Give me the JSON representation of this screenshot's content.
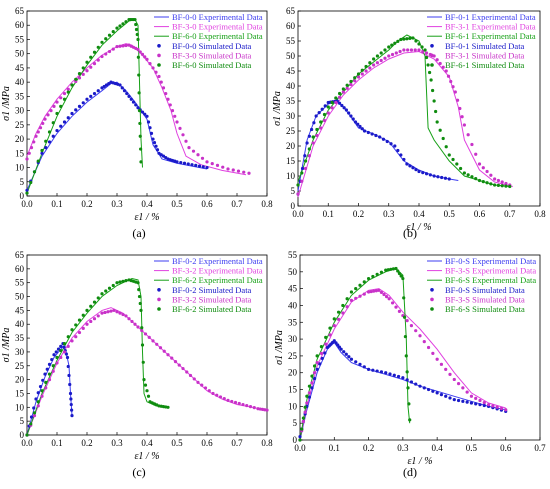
{
  "chart_data": [
    {
      "type": "line",
      "panel_label": "(a)",
      "xlabel": "ε1 / %",
      "ylabel": "σ1 /MPa",
      "xlim": [
        0,
        0.8
      ],
      "ylim": [
        0,
        65
      ],
      "xticks": [
        "0.0",
        "0.1",
        "0.2",
        "0.3",
        "0.4",
        "0.5",
        "0.6",
        "0.7",
        "0.8"
      ],
      "yticks": [
        "0",
        "5",
        "10",
        "15",
        "20",
        "25",
        "30",
        "35",
        "40",
        "45",
        "50",
        "55",
        "60",
        "65"
      ],
      "legend_position": "top-right",
      "series": [
        {
          "name": "BF-0-0 Experimental Data",
          "color": "#3c3cf0",
          "style": "solid",
          "x": [
            0,
            0.05,
            0.1,
            0.15,
            0.2,
            0.25,
            0.28,
            0.3,
            0.33,
            0.36,
            0.38,
            0.4,
            0.42,
            0.45,
            0.5,
            0.55,
            0.6
          ],
          "y": [
            2,
            14,
            22,
            28,
            33,
            37,
            39.5,
            40,
            37,
            33,
            30,
            27,
            18,
            13,
            11.5,
            10.5,
            9.5
          ]
        },
        {
          "name": "BF-3-0 Experimental Data",
          "color": "#e040e0",
          "style": "solid",
          "x": [
            0,
            0.03,
            0.06,
            0.1,
            0.15,
            0.2,
            0.25,
            0.3,
            0.33,
            0.35,
            0.38,
            0.42,
            0.45,
            0.48,
            0.5,
            0.53,
            0.58,
            0.65,
            0.73
          ],
          "y": [
            14,
            22,
            28,
            34,
            40,
            45,
            49.5,
            52.5,
            53.5,
            53,
            50,
            45,
            38,
            30,
            22,
            14,
            11,
            9,
            7.5
          ]
        },
        {
          "name": "BF-6-0 Experimental Data",
          "color": "#16a016",
          "style": "solid",
          "x": [
            0,
            0.05,
            0.1,
            0.15,
            0.2,
            0.25,
            0.3,
            0.34,
            0.36,
            0.37,
            0.375,
            0.38,
            0.385
          ],
          "y": [
            1,
            15,
            28,
            38,
            46,
            53,
            58,
            61.5,
            62,
            60,
            40,
            20,
            10
          ]
        },
        {
          "name": "BF-0-0 Simulated Data",
          "color": "#1a1ac8",
          "style": "dotted",
          "x": [
            0,
            0.05,
            0.1,
            0.15,
            0.2,
            0.25,
            0.28,
            0.31,
            0.34,
            0.37,
            0.4,
            0.42,
            0.44,
            0.47,
            0.5,
            0.55,
            0.6
          ],
          "y": [
            2,
            15,
            23,
            29,
            34,
            38,
            40,
            39,
            35,
            31,
            28,
            20,
            15,
            13,
            12,
            11,
            10
          ]
        },
        {
          "name": "BF-3-0 Simulated Data",
          "color": "#c832c8",
          "style": "dotted",
          "x": [
            0,
            0.03,
            0.06,
            0.1,
            0.15,
            0.2,
            0.25,
            0.3,
            0.34,
            0.37,
            0.4,
            0.44,
            0.47,
            0.5,
            0.54,
            0.6,
            0.67,
            0.74
          ],
          "y": [
            13,
            21,
            27,
            33,
            39,
            44,
            49,
            52.5,
            53,
            51.5,
            48,
            42,
            34,
            26,
            17,
            12,
            9.5,
            8
          ]
        },
        {
          "name": "BF-6-0 Simulated Data",
          "color": "#0f8c0f",
          "style": "dotted",
          "x": [
            0,
            0.05,
            0.1,
            0.15,
            0.2,
            0.25,
            0.3,
            0.34,
            0.36,
            0.37,
            0.375,
            0.38
          ],
          "y": [
            1,
            16,
            29,
            39,
            47,
            54,
            59,
            62,
            62,
            55,
            30,
            12
          ]
        }
      ]
    },
    {
      "type": "line",
      "panel_label": "(b)",
      "xlabel": "ε1 / %",
      "ylabel": "σ1 /MPa",
      "xlim": [
        0,
        0.8
      ],
      "ylim": [
        0,
        65
      ],
      "xticks": [
        "0.0",
        "0.1",
        "0.2",
        "0.3",
        "0.4",
        "0.5",
        "0.6",
        "0.7",
        "0.8"
      ],
      "yticks": [
        "0",
        "5",
        "10",
        "15",
        "20",
        "25",
        "30",
        "35",
        "40",
        "45",
        "50",
        "55",
        "60",
        "65"
      ],
      "legend_position": "top-right",
      "series": [
        {
          "name": "BF-0-1 Experimental Data",
          "color": "#3c3cf0",
          "style": "solid",
          "x": [
            0,
            0.03,
            0.06,
            0.1,
            0.13,
            0.15,
            0.18,
            0.2,
            0.25,
            0.3,
            0.35,
            0.4,
            0.45,
            0.5,
            0.53
          ],
          "y": [
            5,
            22,
            30,
            34,
            35,
            33,
            29,
            26,
            24,
            21.5,
            15,
            12,
            10,
            9,
            8.5
          ]
        },
        {
          "name": "BF-3-1 Experimental Data",
          "color": "#e040e0",
          "style": "solid",
          "x": [
            0,
            0.05,
            0.1,
            0.15,
            0.2,
            0.25,
            0.3,
            0.35,
            0.4,
            0.45,
            0.5,
            0.53,
            0.55,
            0.6,
            0.65,
            0.71
          ],
          "y": [
            3,
            20,
            30,
            37,
            42,
            46,
            49,
            51,
            51.5,
            49,
            43,
            33,
            22,
            12,
            8,
            6.5
          ]
        },
        {
          "name": "BF-6-1 Experimental Data",
          "color": "#16a016",
          "style": "solid",
          "x": [
            0,
            0.05,
            0.1,
            0.15,
            0.2,
            0.25,
            0.3,
            0.33,
            0.36,
            0.4,
            0.42,
            0.43,
            0.45,
            0.5,
            0.55,
            0.6,
            0.65,
            0.7
          ],
          "y": [
            8,
            22,
            32,
            38,
            44,
            48,
            52,
            55,
            57,
            55,
            50,
            26,
            22,
            15,
            10,
            8.5,
            7,
            6.5
          ]
        },
        {
          "name": "BF-0-1 Simulated Data",
          "color": "#1a1ac8",
          "style": "dotted",
          "x": [
            0,
            0.03,
            0.06,
            0.1,
            0.13,
            0.16,
            0.19,
            0.22,
            0.27,
            0.32,
            0.36,
            0.4,
            0.45,
            0.5
          ],
          "y": [
            4,
            21,
            30,
            34.5,
            35,
            32,
            28,
            25,
            23,
            20,
            14,
            11.5,
            10,
            9
          ]
        },
        {
          "name": "BF-3-1 Simulated Data",
          "color": "#c832c8",
          "style": "dotted",
          "x": [
            0,
            0.05,
            0.1,
            0.15,
            0.2,
            0.25,
            0.3,
            0.35,
            0.4,
            0.45,
            0.49,
            0.52,
            0.55,
            0.6,
            0.65,
            0.7
          ],
          "y": [
            4,
            21,
            31,
            38,
            43,
            47,
            50,
            52,
            52,
            50,
            45,
            38,
            27,
            14,
            9,
            7
          ]
        },
        {
          "name": "BF-6-1 Simulated Data",
          "color": "#0f8c0f",
          "style": "dotted",
          "x": [
            0,
            0.05,
            0.1,
            0.15,
            0.2,
            0.25,
            0.3,
            0.34,
            0.38,
            0.42,
            0.44,
            0.46,
            0.5,
            0.55,
            0.6,
            0.65,
            0.7
          ],
          "y": [
            7,
            23,
            33,
            39,
            44,
            49,
            53,
            55.5,
            56,
            52,
            42,
            28,
            17,
            11,
            8.5,
            7,
            6.5
          ]
        }
      ]
    },
    {
      "type": "line",
      "panel_label": "(c)",
      "xlabel": "ε1 / %",
      "ylabel": "σ1 /MPa",
      "xlim": [
        0,
        0.8
      ],
      "ylim": [
        0,
        65
      ],
      "xticks": [
        "0.0",
        "0.1",
        "0.2",
        "0.3",
        "0.4",
        "0.5",
        "0.6",
        "0.7",
        "0.8"
      ],
      "yticks": [
        "0",
        "5",
        "10",
        "15",
        "20",
        "25",
        "30",
        "35",
        "40",
        "45",
        "50",
        "55",
        "60",
        "65"
      ],
      "legend_position": "top-right",
      "series": [
        {
          "name": "BF-0-2 Experimental Data",
          "color": "#3c3cf0",
          "style": "solid",
          "x": [
            0,
            0.03,
            0.06,
            0.09,
            0.12,
            0.13,
            0.14,
            0.145,
            0.15
          ],
          "y": [
            0,
            12,
            21,
            28,
            32,
            30,
            25,
            15,
            7
          ]
        },
        {
          "name": "BF-3-2 Experimental Data",
          "color": "#e040e0",
          "style": "solid",
          "x": [
            0,
            0.05,
            0.1,
            0.15,
            0.2,
            0.25,
            0.28,
            0.32,
            0.36,
            0.4,
            0.45,
            0.5,
            0.55,
            0.6,
            0.65,
            0.7,
            0.75,
            0.8
          ],
          "y": [
            0,
            14,
            26,
            35,
            41,
            45,
            46,
            44,
            40,
            36,
            31,
            26,
            21,
            16,
            13,
            11,
            10,
            9
          ]
        },
        {
          "name": "BF-6-2 Experimental Data",
          "color": "#16a016",
          "style": "solid",
          "x": [
            0,
            0.05,
            0.1,
            0.15,
            0.2,
            0.25,
            0.3,
            0.35,
            0.37,
            0.38,
            0.385,
            0.39,
            0.4,
            0.43,
            0.47
          ],
          "y": [
            0,
            15,
            27,
            37,
            44,
            50,
            54,
            56.5,
            56,
            50,
            30,
            15,
            12,
            10.5,
            10
          ]
        },
        {
          "name": "BF-0-2 Simulated Data",
          "color": "#1a1ac8",
          "style": "dotted",
          "x": [
            0,
            0.03,
            0.06,
            0.09,
            0.12,
            0.135,
            0.145,
            0.15
          ],
          "y": [
            0,
            13,
            22,
            29,
            33,
            28,
            15,
            7
          ]
        },
        {
          "name": "BF-3-2 Simulated Data",
          "color": "#c832c8",
          "style": "dotted",
          "x": [
            0,
            0.05,
            0.1,
            0.15,
            0.2,
            0.25,
            0.29,
            0.33,
            0.37,
            0.42,
            0.47,
            0.52,
            0.57,
            0.62,
            0.67,
            0.72,
            0.77,
            0.8
          ],
          "y": [
            0,
            14,
            26,
            34,
            40,
            44,
            45,
            43,
            39,
            34,
            29,
            24,
            19,
            15,
            12.5,
            11,
            9.5,
            9
          ]
        },
        {
          "name": "BF-6-2 Simulated Data",
          "color": "#0f8c0f",
          "style": "dotted",
          "x": [
            0,
            0.05,
            0.1,
            0.15,
            0.2,
            0.25,
            0.3,
            0.34,
            0.37,
            0.38,
            0.39,
            0.41,
            0.44,
            0.47
          ],
          "y": [
            0,
            16,
            28,
            38,
            45,
            51,
            55,
            56,
            55,
            45,
            20,
            12,
            10.5,
            10
          ]
        }
      ]
    },
    {
      "type": "line",
      "panel_label": "(d)",
      "xlabel": "ε1 / %",
      "ylabel": "σ1 /MPa",
      "xlim": [
        0,
        0.7
      ],
      "ylim": [
        0,
        55
      ],
      "xticks": [
        "0.0",
        "0.1",
        "0.2",
        "0.3",
        "0.4",
        "0.5",
        "0.6",
        "0.7"
      ],
      "yticks": [
        "0",
        "5",
        "10",
        "15",
        "20",
        "25",
        "30",
        "35",
        "40",
        "45",
        "50",
        "55"
      ],
      "legend_position": "top-right",
      "series": [
        {
          "name": "BF-0-S Experimental Data",
          "color": "#3c3cf0",
          "style": "solid",
          "x": [
            0,
            0.02,
            0.05,
            0.08,
            0.1,
            0.12,
            0.15,
            0.2,
            0.25,
            0.3,
            0.35,
            0.4,
            0.45,
            0.5,
            0.55,
            0.6
          ],
          "y": [
            0,
            9,
            20,
            27,
            29,
            26,
            23,
            21,
            19.5,
            18,
            16,
            14.5,
            13,
            11.5,
            10,
            9
          ]
        },
        {
          "name": "BF-3-S Experimental Data",
          "color": "#e040e0",
          "style": "solid",
          "x": [
            0,
            0.02,
            0.05,
            0.1,
            0.15,
            0.2,
            0.23,
            0.26,
            0.3,
            0.35,
            0.4,
            0.45,
            0.5,
            0.55,
            0.6
          ],
          "y": [
            0,
            10,
            22,
            33,
            41,
            44.5,
            45,
            43,
            38,
            33,
            27,
            20,
            14,
            11,
            9.5
          ]
        },
        {
          "name": "BF-6-S Experimental Data",
          "color": "#16a016",
          "style": "solid",
          "x": [
            0,
            0.02,
            0.05,
            0.1,
            0.15,
            0.2,
            0.25,
            0.28,
            0.3,
            0.31,
            0.315,
            0.32
          ],
          "y": [
            0,
            12,
            24,
            35,
            43,
            47.5,
            50,
            51,
            49,
            30,
            10,
            5
          ]
        },
        {
          "name": "BF-0-S Simulated Data",
          "color": "#1a1ac8",
          "style": "dotted",
          "x": [
            0,
            0.02,
            0.05,
            0.08,
            0.1,
            0.12,
            0.15,
            0.2,
            0.25,
            0.3,
            0.35,
            0.4,
            0.45,
            0.5,
            0.55,
            0.6
          ],
          "y": [
            1,
            10,
            21,
            27.5,
            29.5,
            27,
            24,
            21,
            20,
            18.5,
            16,
            14,
            12,
            11,
            10,
            8.5
          ]
        },
        {
          "name": "BF-3-S Simulated Data",
          "color": "#c832c8",
          "style": "dotted",
          "x": [
            0,
            0.02,
            0.05,
            0.1,
            0.15,
            0.2,
            0.23,
            0.26,
            0.3,
            0.35,
            0.4,
            0.45,
            0.5,
            0.55,
            0.6
          ],
          "y": [
            0,
            11,
            23,
            34,
            41.5,
            44,
            44.5,
            42,
            37,
            31,
            24,
            18,
            13,
            10.5,
            9
          ]
        },
        {
          "name": "BF-6-S Simulated Data",
          "color": "#0f8c0f",
          "style": "dotted",
          "x": [
            0,
            0.02,
            0.05,
            0.1,
            0.15,
            0.2,
            0.25,
            0.28,
            0.3,
            0.31,
            0.32
          ],
          "y": [
            0,
            13,
            25,
            36,
            44,
            48,
            50.5,
            51,
            48,
            25,
            6
          ]
        }
      ]
    }
  ]
}
